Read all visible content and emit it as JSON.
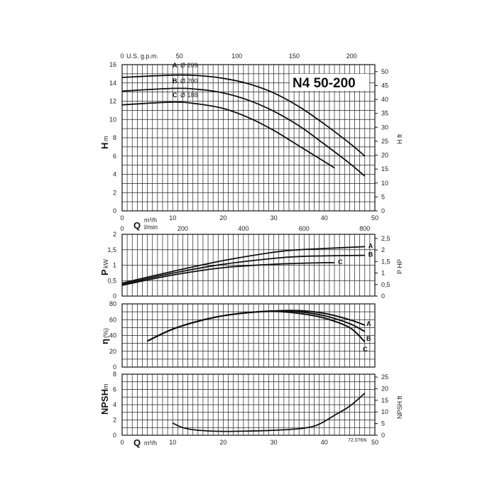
{
  "title": "N4 50-200",
  "code": "72.076N",
  "head_units": {
    "left": "m",
    "right": "ft"
  },
  "flow_units": {
    "usgpm": "U.S. g.p.m.",
    "m3h": "m³/h",
    "lmin": "l/min"
  },
  "chart_data": [
    {
      "type": "line",
      "name": "head",
      "xlabel": "Q m³/h",
      "ylabel": "H m",
      "ylabel_right": "H ft",
      "xlim": [
        0,
        50
      ],
      "ylim": [
        0,
        16
      ],
      "ylim_right": [
        0,
        52.5
      ],
      "x_ticks": [
        0,
        10,
        20,
        30,
        40,
        50
      ],
      "y_ticks": [
        0,
        2,
        4,
        6,
        8,
        10,
        12,
        14,
        16
      ],
      "y_right_ticks": [
        0,
        5,
        10,
        15,
        20,
        25,
        30,
        35,
        40,
        45,
        50
      ],
      "top_axis": {
        "label": "U.S. g.p.m.",
        "ticks": [
          0,
          50,
          100,
          150,
          200
        ]
      },
      "series": [
        {
          "name": "A",
          "diameter": "Ø 209",
          "x": [
            0,
            10,
            15,
            20,
            25,
            30,
            35,
            40,
            45,
            48
          ],
          "y": [
            14.6,
            14.85,
            14.8,
            14.5,
            13.9,
            12.9,
            11.4,
            9.5,
            7.4,
            6.0
          ]
        },
        {
          "name": "B",
          "diameter": "Ø 200",
          "x": [
            0,
            10,
            15,
            20,
            25,
            30,
            35,
            40,
            45,
            48
          ],
          "y": [
            13.1,
            13.4,
            13.3,
            12.9,
            12.1,
            10.9,
            9.3,
            7.3,
            5.2,
            3.8
          ]
        },
        {
          "name": "C",
          "diameter": "Ø 188",
          "x": [
            0,
            10,
            15,
            20,
            25,
            30,
            35,
            40,
            42
          ],
          "y": [
            11.6,
            11.9,
            11.7,
            11.2,
            10.2,
            8.8,
            7.1,
            5.4,
            4.7
          ]
        }
      ]
    },
    {
      "type": "line",
      "name": "power",
      "xlabel": "Q l/min",
      "ylabel": "P kW",
      "ylabel_right": "P HP",
      "xlim": [
        0,
        50
      ],
      "ylim": [
        0,
        2
      ],
      "ylim_right": [
        0,
        2.68
      ],
      "x_ticks": [
        0,
        200,
        400,
        600,
        800
      ],
      "y_ticks": [
        "0",
        "0,5",
        "1",
        "1,5",
        "2"
      ],
      "y_right_ticks": [
        "0",
        "0,5",
        "1",
        "1,5",
        "2",
        "2,5"
      ],
      "series": [
        {
          "name": "A",
          "x": [
            0,
            10,
            20,
            30,
            35,
            40,
            48
          ],
          "y": [
            0.42,
            0.8,
            1.15,
            1.42,
            1.5,
            1.54,
            1.6
          ]
        },
        {
          "name": "B",
          "x": [
            0,
            10,
            20,
            30,
            35,
            40,
            48
          ],
          "y": [
            0.38,
            0.74,
            1.03,
            1.22,
            1.28,
            1.3,
            1.32
          ]
        },
        {
          "name": "C",
          "x": [
            0,
            10,
            20,
            30,
            35,
            40,
            42
          ],
          "y": [
            0.35,
            0.68,
            0.92,
            1.03,
            1.06,
            1.08,
            1.08
          ]
        }
      ]
    },
    {
      "type": "line",
      "name": "efficiency",
      "xlabel": "Q",
      "ylabel": "η (%)",
      "xlim": [
        0,
        50
      ],
      "ylim": [
        0,
        80
      ],
      "y_ticks": [
        0,
        20,
        40,
        60,
        80
      ],
      "series": [
        {
          "name": "A",
          "x": [
            5,
            10,
            15,
            20,
            25,
            30,
            35,
            40,
            45,
            48
          ],
          "y": [
            33,
            48,
            58,
            65,
            69,
            71,
            71.5,
            68,
            60,
            53
          ]
        },
        {
          "name": "B",
          "x": [
            5,
            10,
            15,
            20,
            25,
            30,
            35,
            40,
            45,
            48
          ],
          "y": [
            33,
            48,
            58,
            65,
            69,
            71,
            70,
            65,
            55,
            45
          ]
        },
        {
          "name": "C",
          "x": [
            5,
            10,
            15,
            20,
            25,
            30,
            35,
            40,
            45,
            48
          ],
          "y": [
            33,
            48,
            58,
            65,
            69,
            70.5,
            68,
            62,
            50,
            32
          ]
        }
      ]
    },
    {
      "type": "line",
      "name": "npsh",
      "xlabel": "Q m³/h",
      "ylabel": "NPSH m",
      "ylabel_right": "NPSH ft",
      "xlim": [
        0,
        50
      ],
      "ylim": [
        0,
        8
      ],
      "ylim_right": [
        0,
        26.25
      ],
      "x_ticks": [
        0,
        10,
        20,
        30,
        40,
        50
      ],
      "y_ticks": [
        0,
        2,
        4,
        6,
        8
      ],
      "y_right_ticks": [
        0,
        5,
        10,
        15,
        20,
        25
      ],
      "series": [
        {
          "name": "NPSH",
          "x": [
            10,
            12,
            15,
            20,
            25,
            30,
            35,
            38,
            40,
            42,
            45,
            48
          ],
          "y": [
            1.6,
            1.0,
            0.65,
            0.5,
            0.55,
            0.65,
            0.85,
            1.2,
            1.8,
            2.6,
            3.8,
            5.5
          ]
        }
      ]
    }
  ]
}
